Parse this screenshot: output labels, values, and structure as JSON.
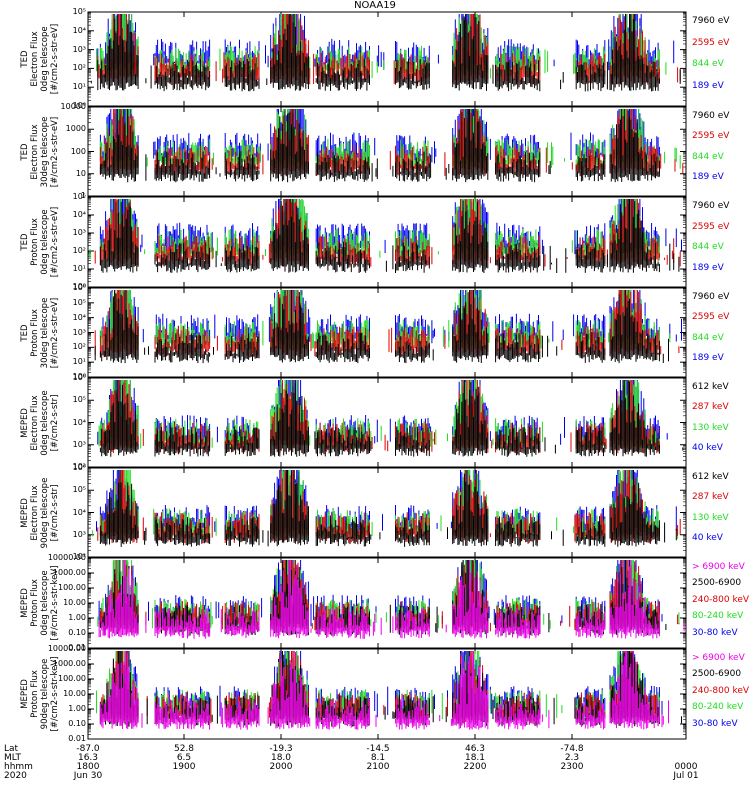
{
  "title": "NOAA19",
  "time_axis": {
    "row_names": [
      "Lat",
      "MLT",
      "hhmm",
      "2020"
    ],
    "ticks": [
      {
        "lat": "-87.0",
        "mlt": "16.3",
        "hhmm": "1800",
        "date": "Jun 30"
      },
      {
        "lat": "52.8",
        "mlt": "6.5",
        "hhmm": "1900",
        "date": ""
      },
      {
        "lat": "-19.3",
        "mlt": "18.0",
        "hhmm": "2000",
        "date": ""
      },
      {
        "lat": "-14.5",
        "mlt": "8.1",
        "hhmm": "2100",
        "date": ""
      },
      {
        "lat": "46.3",
        "mlt": "18.1",
        "hhmm": "2200",
        "date": ""
      },
      {
        "lat": "-74.8",
        "mlt": "2.3",
        "hhmm": "2300",
        "date": ""
      },
      {
        "lat": "",
        "mlt": "",
        "hhmm": "0000",
        "date": "Jul 01"
      }
    ]
  },
  "colors": {
    "black": "#000000",
    "red": "#dd0000",
    "green": "#22dd22",
    "blue": "#0000ee",
    "magenta": "#ee00ee"
  },
  "chart_data": [
    {
      "type": "line",
      "ylabel": [
        "TED",
        "Electron Flux",
        "0deg telescope",
        "[#/cm2-s-str-eV]"
      ],
      "yscale": "log",
      "ylim": [
        1,
        100000
      ],
      "yticks": [
        {
          "value": 1,
          "label": "10⁰"
        },
        {
          "value": 10,
          "label": "10¹"
        },
        {
          "value": 100,
          "label": "10²"
        },
        {
          "value": 1000,
          "label": "10³"
        },
        {
          "value": 10000,
          "label": "10⁴"
        },
        {
          "value": 100000,
          "label": "10⁵"
        }
      ],
      "legend": [
        {
          "label": "7960 eV",
          "color": "#000000"
        },
        {
          "label": "2595 eV",
          "color": "#dd0000"
        },
        {
          "label": "844 eV",
          "color": "#22dd22"
        },
        {
          "label": "189 eV",
          "color": "#0000ee"
        }
      ]
    },
    {
      "type": "line",
      "ylabel": [
        "TED",
        "Electron Flux",
        "30deg telescope",
        "[#/cm2-s-str-eV]"
      ],
      "yscale": "log",
      "ylim": [
        1,
        10000
      ],
      "yticks": [
        {
          "value": 1,
          "label": "1"
        },
        {
          "value": 10,
          "label": "10"
        },
        {
          "value": 100,
          "label": "100"
        },
        {
          "value": 1000,
          "label": "1000"
        },
        {
          "value": 10000,
          "label": "10000"
        }
      ],
      "legend": [
        {
          "label": "7960 eV",
          "color": "#000000"
        },
        {
          "label": "2595 eV",
          "color": "#dd0000"
        },
        {
          "label": "844 eV",
          "color": "#22dd22"
        },
        {
          "label": "189 eV",
          "color": "#0000ee"
        }
      ]
    },
    {
      "type": "line",
      "ylabel": [
        "TED",
        "Proton Flux",
        "0deg telescope",
        "[#/cm2-s-str-eV]"
      ],
      "yscale": "log",
      "ylim": [
        1,
        100000
      ],
      "yticks": [
        {
          "value": 1,
          "label": "10⁰"
        },
        {
          "value": 10,
          "label": "10¹"
        },
        {
          "value": 100,
          "label": "10²"
        },
        {
          "value": 1000,
          "label": "10³"
        },
        {
          "value": 10000,
          "label": "10⁴"
        },
        {
          "value": 100000,
          "label": "10⁵"
        }
      ],
      "legend": [
        {
          "label": "7960 eV",
          "color": "#000000"
        },
        {
          "label": "2595 eV",
          "color": "#dd0000"
        },
        {
          "label": "844 eV",
          "color": "#22dd22"
        },
        {
          "label": "189 eV",
          "color": "#0000ee"
        }
      ]
    },
    {
      "type": "line",
      "ylabel": [
        "TED",
        "Proton Flux",
        "30deg telescope",
        "[#/cm2-s-str-eV]"
      ],
      "yscale": "log",
      "ylim": [
        1,
        1000000
      ],
      "yticks": [
        {
          "value": 1,
          "label": "10⁰"
        },
        {
          "value": 10,
          "label": "10¹"
        },
        {
          "value": 100,
          "label": "10²"
        },
        {
          "value": 1000,
          "label": "10³"
        },
        {
          "value": 10000,
          "label": "10⁴"
        },
        {
          "value": 100000,
          "label": "10⁵"
        },
        {
          "value": 1000000,
          "label": "10⁶"
        }
      ],
      "legend": [
        {
          "label": "7960 eV",
          "color": "#000000"
        },
        {
          "label": "2595 eV",
          "color": "#dd0000"
        },
        {
          "label": "844 eV",
          "color": "#22dd22"
        },
        {
          "label": "189 eV",
          "color": "#0000ee"
        }
      ]
    },
    {
      "type": "line",
      "ylabel": [
        "MEPED",
        "Electron Flux",
        "0deg telescope",
        "[#/cm2-s-str]"
      ],
      "yscale": "log",
      "ylim": [
        100,
        1000000
      ],
      "yticks": [
        {
          "value": 100,
          "label": "10²"
        },
        {
          "value": 1000,
          "label": "10³"
        },
        {
          "value": 10000,
          "label": "10⁴"
        },
        {
          "value": 100000,
          "label": "10⁵"
        },
        {
          "value": 1000000,
          "label": "10⁶"
        }
      ],
      "legend": [
        {
          "label": "612 keV",
          "color": "#000000"
        },
        {
          "label": "287 keV",
          "color": "#dd0000"
        },
        {
          "label": "130 keV",
          "color": "#22dd22"
        },
        {
          "label": "40 keV",
          "color": "#0000ee"
        }
      ]
    },
    {
      "type": "line",
      "ylabel": [
        "MEPED",
        "Electron Flux",
        "90deg telescope",
        "[#/cm2-s-str]"
      ],
      "yscale": "log",
      "ylim": [
        100,
        1000000
      ],
      "yticks": [
        {
          "value": 100,
          "label": "10²"
        },
        {
          "value": 1000,
          "label": "10³"
        },
        {
          "value": 10000,
          "label": "10⁴"
        },
        {
          "value": 100000,
          "label": "10⁵"
        },
        {
          "value": 1000000,
          "label": "10⁶"
        }
      ],
      "legend": [
        {
          "label": "612 keV",
          "color": "#000000"
        },
        {
          "label": "287 keV",
          "color": "#dd0000"
        },
        {
          "label": "130 keV",
          "color": "#22dd22"
        },
        {
          "label": "40 keV",
          "color": "#0000ee"
        }
      ]
    },
    {
      "type": "line",
      "ylabel": [
        "MEPED",
        "Proton Flux",
        "0deg telescope",
        "[#/cm2-s-str-keV]"
      ],
      "yscale": "log",
      "ylim": [
        0.01,
        10000
      ],
      "yticks": [
        {
          "value": 0.01,
          "label": "0.01"
        },
        {
          "value": 0.1,
          "label": "0.10"
        },
        {
          "value": 1,
          "label": "1.00"
        },
        {
          "value": 10,
          "label": "10.00"
        },
        {
          "value": 100,
          "label": "100.00"
        },
        {
          "value": 1000,
          "label": "1000.00"
        },
        {
          "value": 10000,
          "label": "10000.00"
        }
      ],
      "legend": [
        {
          "label": "> 6900 keV",
          "color": "#ee00ee"
        },
        {
          "label": "2500-6900",
          "color": "#000000"
        },
        {
          "label": "240-800 keV",
          "color": "#dd0000"
        },
        {
          "label": "80-240 keV",
          "color": "#22dd22"
        },
        {
          "label": "30-80 keV",
          "color": "#0000ee"
        }
      ]
    },
    {
      "type": "line",
      "ylabel": [
        "MEPED",
        "Proton Flux",
        "90deg telescope",
        "[#/cm2-s-str-keV]"
      ],
      "yscale": "log",
      "ylim": [
        0.01,
        10000
      ],
      "yticks": [
        {
          "value": 0.01,
          "label": "0.01"
        },
        {
          "value": 0.1,
          "label": "0.10"
        },
        {
          "value": 1,
          "label": "1.00"
        },
        {
          "value": 10,
          "label": "10.00"
        },
        {
          "value": 100,
          "label": "100.00"
        },
        {
          "value": 1000,
          "label": "1000.00"
        },
        {
          "value": 10000,
          "label": "10000.00"
        }
      ],
      "legend": [
        {
          "label": "> 6900 keV",
          "color": "#ee00ee"
        },
        {
          "label": "2500-6900",
          "color": "#000000"
        },
        {
          "label": "240-800 keV",
          "color": "#dd0000"
        },
        {
          "label": "80-240 keV",
          "color": "#22dd22"
        },
        {
          "label": "30-80 keV",
          "color": "#0000ee"
        }
      ]
    }
  ]
}
